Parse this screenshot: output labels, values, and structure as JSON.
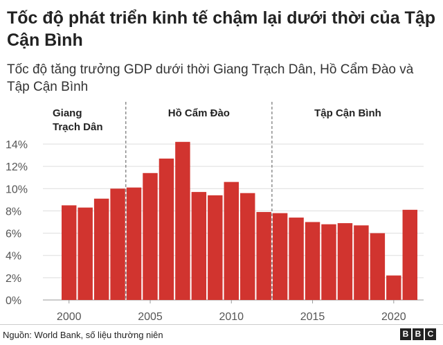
{
  "title": "Tốc độ phát triển kinh tế chậm lại dưới thời của Tập Cận Bình",
  "subtitle": "Tốc độ tăng trưởng GDP dưới thời Giang Trạch Dân, Hồ Cẩm Đào và Tập Cận Bình",
  "source": "Nguồn: World Bank, số liệu thường niên",
  "logo": [
    "B",
    "B",
    "C"
  ],
  "chart_data": {
    "type": "bar",
    "x": [
      2000,
      2001,
      2002,
      2003,
      2004,
      2005,
      2006,
      2007,
      2008,
      2009,
      2010,
      2011,
      2012,
      2013,
      2014,
      2015,
      2016,
      2017,
      2018,
      2019,
      2020,
      2021
    ],
    "values": [
      8.5,
      8.3,
      9.1,
      10.0,
      10.1,
      11.4,
      12.7,
      14.2,
      9.7,
      9.4,
      10.6,
      9.6,
      7.9,
      7.8,
      7.4,
      7.0,
      6.8,
      6.9,
      6.7,
      6.0,
      2.2,
      8.1
    ],
    "bar_color": "#d1342f",
    "ylim": [
      0,
      14
    ],
    "yticks": [
      0,
      2,
      4,
      6,
      8,
      10,
      12,
      14
    ],
    "ytick_labels": [
      "0%",
      "2%",
      "4%",
      "6%",
      "8%",
      "10%",
      "12%",
      "14%"
    ],
    "xticks": [
      2000,
      2005,
      2010,
      2015,
      2020
    ],
    "xtick_labels": [
      "2000",
      "2005",
      "2010",
      "2015",
      "2020"
    ],
    "grid": true,
    "eras": [
      {
        "label_lines": [
          "Giang",
          "Trạch Dân"
        ],
        "start": 2000,
        "end": 2003
      },
      {
        "label_lines": [
          "Hồ Cẩm Đào"
        ],
        "start": 2003,
        "end": 2012
      },
      {
        "label_lines": [
          "Tập Cận Bình"
        ],
        "start": 2012,
        "end": 2021
      }
    ]
  }
}
